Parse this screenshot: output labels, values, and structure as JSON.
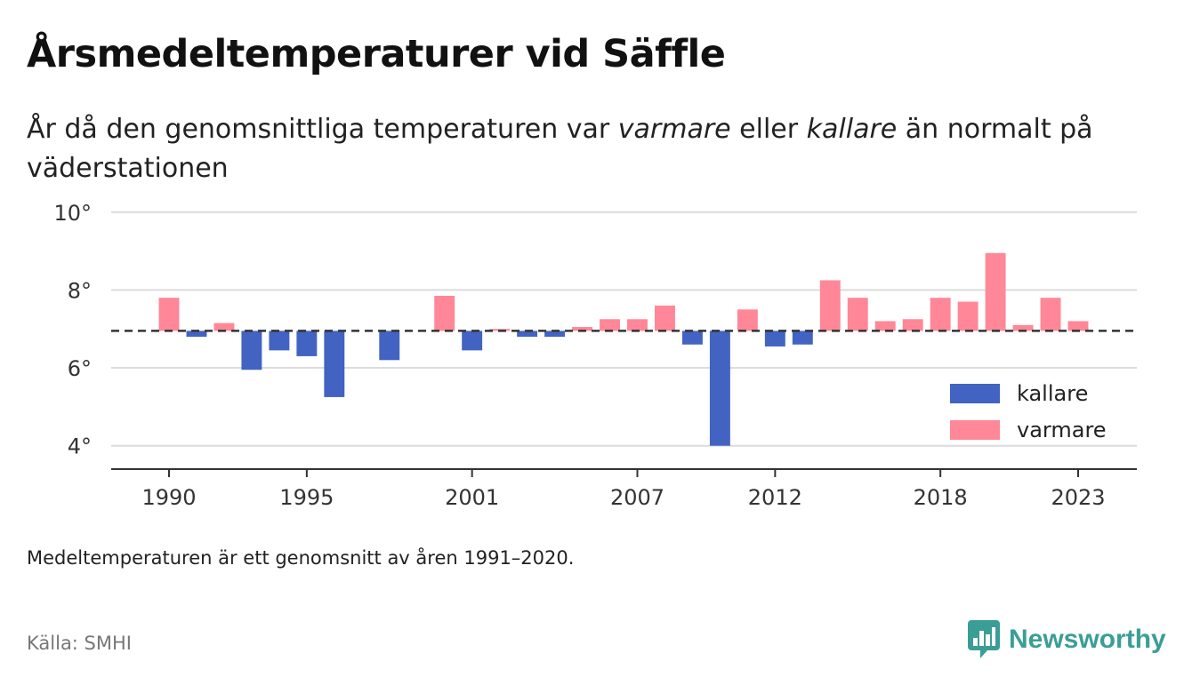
{
  "title": "Årsmedeltemperaturer vid Säffle",
  "subtitle": {
    "pre": "År då den genomsnittliga temperaturen var ",
    "warm_word": "varmare",
    "mid": " eller ",
    "cold_word": "kallare",
    "post": " än normalt på väderstationen"
  },
  "note": "Medeltemperaturen är ett genomsnitt av åren 1991–2020.",
  "source": "Källa: SMHI",
  "brand": {
    "name": "Newsworthy",
    "icon": "newsworthy-logo-icon",
    "color": "#3a9e96"
  },
  "chart_data": {
    "type": "bar",
    "baseline": 6.95,
    "ylim": [
      3.4,
      10.2
    ],
    "y_ticks": [
      4,
      6,
      8,
      10
    ],
    "y_tick_suffix": "°",
    "x_ticks": [
      1990,
      1995,
      2001,
      2007,
      2012,
      2018,
      2023
    ],
    "grid": true,
    "legend_position": "bottom-right",
    "colors": {
      "kallare": "#4263c2",
      "varmare": "#ff8797",
      "baseline": "#333333"
    },
    "legend": [
      {
        "key": "kallare",
        "label": "kallare"
      },
      {
        "key": "varmare",
        "label": "varmare"
      }
    ],
    "years": [
      1990,
      1991,
      1992,
      1993,
      1994,
      1995,
      1996,
      1997,
      1998,
      1999,
      2000,
      2001,
      2002,
      2003,
      2004,
      2005,
      2006,
      2007,
      2008,
      2009,
      2010,
      2011,
      2012,
      2013,
      2014,
      2015,
      2016,
      2017,
      2018,
      2019,
      2020,
      2021,
      2022,
      2023
    ],
    "values": [
      7.8,
      6.8,
      7.15,
      5.95,
      6.45,
      6.3,
      5.25,
      null,
      6.2,
      null,
      7.85,
      6.45,
      7.0,
      6.8,
      6.8,
      7.05,
      7.25,
      7.25,
      7.6,
      6.6,
      4.0,
      7.5,
      6.55,
      6.6,
      8.25,
      7.8,
      7.2,
      7.25,
      7.8,
      7.7,
      8.95,
      7.1,
      7.8,
      7.2
    ]
  }
}
